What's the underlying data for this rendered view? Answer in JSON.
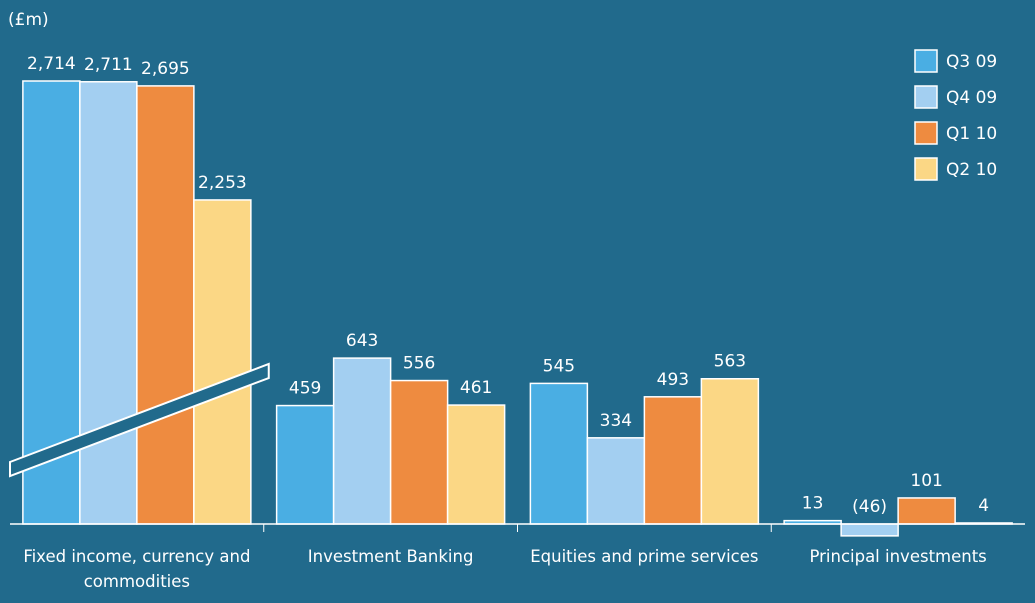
{
  "chart_data": {
    "type": "bar",
    "y_axis_label": "(£m)",
    "axis_break": true,
    "categories": [
      "Fixed income, currency and commodities",
      "Investment Banking",
      "Equities and prime services",
      "Principal investments"
    ],
    "series": [
      {
        "name": "Q3 09",
        "color": "#4aaee3",
        "values": [
          2714,
          459,
          545,
          13
        ],
        "value_labels": [
          "2,714",
          "459",
          "545",
          "13"
        ]
      },
      {
        "name": "Q4 09",
        "color": "#a3cff1",
        "values": [
          2711,
          643,
          334,
          -46
        ],
        "value_labels": [
          "2,711",
          "643",
          "334",
          "(46)"
        ]
      },
      {
        "name": "Q1 10",
        "color": "#ee8b40",
        "values": [
          2695,
          556,
          493,
          101
        ],
        "value_labels": [
          "2,695",
          "556",
          "493",
          "101"
        ]
      },
      {
        "name": "Q2 10",
        "color": "#fbd785",
        "values": [
          2253,
          461,
          563,
          4
        ],
        "value_labels": [
          "2,253",
          "461",
          "563",
          "4"
        ]
      }
    ],
    "legend": "top-right"
  }
}
